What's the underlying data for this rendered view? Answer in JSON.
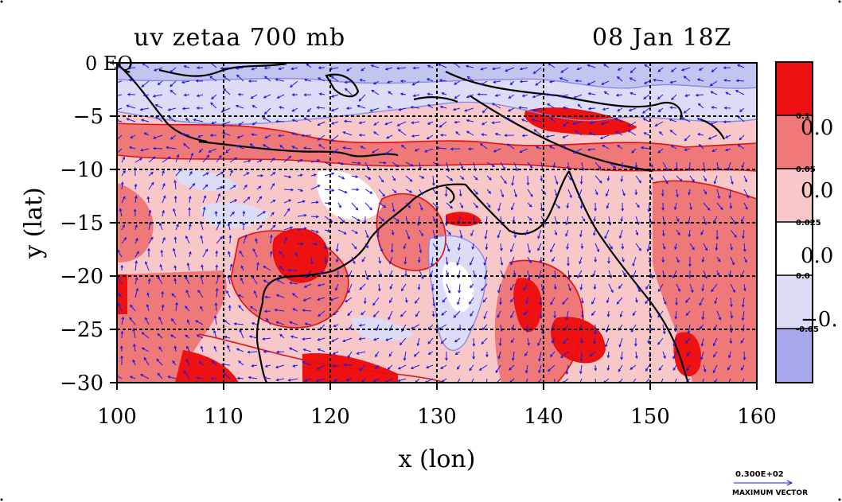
{
  "title_left": "uv zetaa 700 mb",
  "title_right": "08 Jan 18Z",
  "x_axis": {
    "label": "x (lon)",
    "ticks": [
      "100",
      "110",
      "120",
      "130",
      "140",
      "150",
      "160"
    ],
    "range": [
      100,
      160
    ]
  },
  "y_axis": {
    "label": "y (lat)",
    "ticks": [
      "0 EQ",
      "−5",
      "−10",
      "−15",
      "−20",
      "−25",
      "−30"
    ],
    "range": [
      -30,
      0
    ]
  },
  "colorbar": {
    "small_labels": [
      "0.1",
      "0.05",
      "0.025",
      "0.0",
      "-0.05"
    ],
    "large_labels": [
      "0.0",
      "0.0",
      "0.0",
      "−0."
    ],
    "colors": [
      "#ee1111",
      "#ef7878",
      "#f8c8c8",
      "#ffffff",
      "#dcdcf6",
      "#a8a8ec"
    ]
  },
  "vector_key": {
    "value": "0.300E+02",
    "label": "MAXIMUM VECTOR"
  },
  "colors": {
    "strong_positive": "#ee1111",
    "moderate_positive": "#ef7878",
    "weak_positive": "#f8c8c8",
    "weak_negative": "#dcdcf6",
    "moderate_negative": "#a8a8ec",
    "vector": "#1a1aee",
    "coast": "#000000"
  }
}
